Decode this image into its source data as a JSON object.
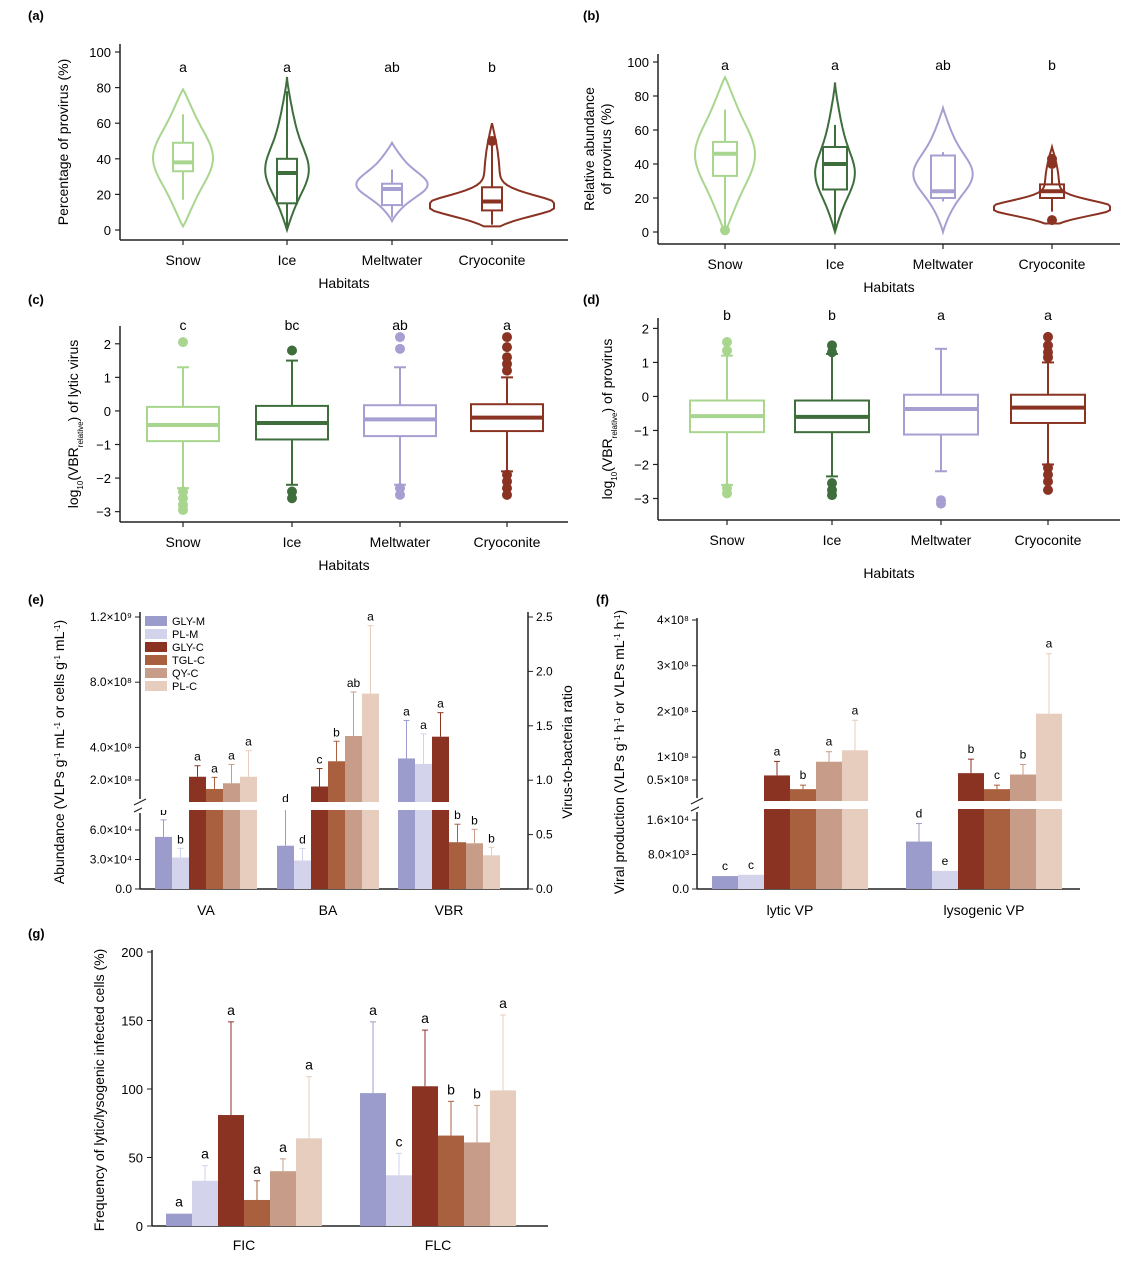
{
  "colors": {
    "Snow": "#a8d68f",
    "Ice": "#3d6e3b",
    "Meltwater": "#a59fd2",
    "Cryoconite": "#8b3323",
    "GLY-M": "#9c9ccc",
    "PL-M": "#d3d3ec",
    "GLY-C": "#8b3323",
    "TGL-C": "#a9603e",
    "QY-C": "#c79c88",
    "PL-C": "#e7cdbd"
  },
  "chart_data": [
    {
      "panel": "(a)",
      "type": "violin",
      "xlabel": "Habitats",
      "ylabel": "Percentage of provirus (%)",
      "categories": [
        "Snow",
        "Ice",
        "Meltwater",
        "Cryoconite"
      ],
      "ylim": [
        0,
        100
      ],
      "yticks": [
        0,
        20,
        40,
        60,
        80,
        100
      ],
      "significance": [
        "a",
        "a",
        "ab",
        "b"
      ],
      "boxes": [
        {
          "min": 17,
          "q1": 33,
          "median": 38,
          "q3": 49,
          "max": 65,
          "vmin": 2,
          "vmax": 79
        },
        {
          "min": 0,
          "q1": 15,
          "median": 32,
          "q3": 40,
          "max": 78,
          "vmin": 0,
          "vmax": 86
        },
        {
          "min": 7,
          "q1": 14,
          "median": 23,
          "q3": 26,
          "max": 34,
          "vmin": 5,
          "vmax": 49
        },
        {
          "min": 3,
          "q1": 11,
          "median": 16,
          "q3": 24,
          "max": 50,
          "vmin": 2,
          "vmax": 60
        }
      ],
      "outliers": [
        [],
        [],
        [],
        [
          50
        ]
      ]
    },
    {
      "panel": "(b)",
      "type": "violin",
      "xlabel": "Habitats",
      "ylabel": "Relative abundance of provirus (%)",
      "ylabel_lines": [
        "Relative abundance",
        "of provirus (%)"
      ],
      "categories": [
        "Snow",
        "Ice",
        "Meltwater",
        "Cryoconite"
      ],
      "ylim": [
        0,
        100
      ],
      "yticks": [
        0,
        20,
        40,
        60,
        80,
        100
      ],
      "significance": [
        "a",
        "a",
        "ab",
        "b"
      ],
      "boxes": [
        {
          "min": 3,
          "q1": 33,
          "median": 46,
          "q3": 53,
          "max": 72,
          "vmin": 0,
          "vmax": 91
        },
        {
          "min": 1,
          "q1": 25,
          "median": 40,
          "q3": 50,
          "max": 63,
          "vmin": 0,
          "vmax": 88
        },
        {
          "min": 18,
          "q1": 20,
          "median": 24,
          "q3": 45,
          "max": 47,
          "vmin": 0,
          "vmax": 73
        },
        {
          "min": 12,
          "q1": 20,
          "median": 24,
          "q3": 28,
          "max": 37,
          "vmin": 5,
          "vmax": 50
        }
      ],
      "outliers": [
        [
          1
        ],
        [],
        [],
        [
          7,
          40,
          43
        ]
      ]
    },
    {
      "panel": "(c)",
      "type": "box",
      "xlabel": "Habitats",
      "ylabel": "log10(VBRrelative) of lytic virus",
      "categories": [
        "Snow",
        "Ice",
        "Meltwater",
        "Cryoconite"
      ],
      "ylim": [
        -3.1,
        2.5
      ],
      "yticks": [
        -3,
        -2,
        -1,
        0,
        1,
        2
      ],
      "significance": [
        "c",
        "bc",
        "ab",
        "a"
      ],
      "boxes": [
        {
          "min": -2.3,
          "q1": -0.9,
          "median": -0.42,
          "q3": 0.12,
          "max": 1.3
        },
        {
          "min": -2.2,
          "q1": -0.85,
          "median": -0.36,
          "q3": 0.15,
          "max": 1.5
        },
        {
          "min": -2.2,
          "q1": -0.75,
          "median": -0.25,
          "q3": 0.17,
          "max": 1.3
        },
        {
          "min": -1.8,
          "q1": -0.6,
          "median": -0.2,
          "q3": 0.2,
          "max": 1.0
        }
      ],
      "outliers": [
        [
          2.05,
          -2.4,
          -2.6,
          -2.8,
          -2.95
        ],
        [
          1.8,
          -2.4,
          -2.6
        ],
        [
          2.2,
          1.85,
          -2.3,
          -2.5
        ],
        [
          2.2,
          1.9,
          1.6,
          1.4,
          1.2,
          -1.9,
          -2.1,
          -2.3,
          -2.5
        ]
      ]
    },
    {
      "panel": "(d)",
      "type": "box",
      "xlabel": "Habitats",
      "ylabel": "log10(VBRrelative) of provirus",
      "categories": [
        "Snow",
        "Ice",
        "Meltwater",
        "Cryoconite"
      ],
      "ylim": [
        -3.25,
        2.1
      ],
      "yticks": [
        -3,
        -2,
        -1,
        0,
        1,
        2
      ],
      "significance": [
        "b",
        "b",
        "a",
        "a"
      ],
      "boxes": [
        {
          "min": -2.6,
          "q1": -1.05,
          "median": -0.58,
          "q3": -0.12,
          "max": 1.2
        },
        {
          "min": -2.35,
          "q1": -1.05,
          "median": -0.6,
          "q3": -0.12,
          "max": 1.25
        },
        {
          "min": -2.2,
          "q1": -1.12,
          "median": -0.37,
          "q3": 0.05,
          "max": 1.4
        },
        {
          "min": -2.0,
          "q1": -0.78,
          "median": -0.33,
          "q3": 0.05,
          "max": 1.0
        }
      ],
      "outliers": [
        [
          1.6,
          1.35,
          -2.7,
          -2.85
        ],
        [
          1.5,
          1.3,
          -2.55,
          -2.75,
          -2.9
        ],
        [
          -3.05,
          -3.15
        ],
        [
          1.75,
          1.5,
          1.3,
          1.15,
          -2.1,
          -2.3,
          -2.5,
          -2.75
        ]
      ]
    },
    {
      "panel": "(e)",
      "type": "bar",
      "xlabel": "",
      "ylabel": "Abundance (VLPs g-1 mL-1 or cells g-1 mL-1)",
      "ylabel_right": "Virus-to-bacteria ratio",
      "categories": [
        "VA",
        "BA",
        "VBR"
      ],
      "series_names": [
        "GLY-M",
        "PL-M",
        "GLY-C",
        "TGL-C",
        "QY-C",
        "PL-C"
      ],
      "yticks_left_lower": [
        "0.0",
        "3.0×10⁴",
        "6.0×10⁴"
      ],
      "yticks_left_upper": [
        "2.0×10⁸",
        "4.0×10⁸",
        "8.0×10⁸",
        "1.2×10⁹"
      ],
      "yticks_right": [
        "0.0",
        "0.5",
        "1.0",
        "1.5",
        "2.0",
        "2.5"
      ],
      "VA": {
        "values": [
          53000,
          32000,
          220000000.0,
          145000000.0,
          180000000.0,
          220000000.0
        ],
        "letters": [
          "b",
          "b",
          "a",
          "a",
          "a",
          "a"
        ]
      },
      "BA": {
        "values": [
          44000,
          29000,
          160000000.0,
          315000000.0,
          470000000.0,
          730000000.0
        ],
        "letters": [
          "d",
          "d",
          "c",
          "b",
          "ab",
          "a"
        ]
      },
      "VBR": {
        "values": [
          1.2,
          1.15,
          1.4,
          0.43,
          0.42,
          0.31
        ],
        "letters": [
          "a",
          "a",
          "a",
          "b",
          "b",
          "b"
        ]
      }
    },
    {
      "panel": "(f)",
      "type": "bar",
      "xlabel": "",
      "ylabel": "Viral production (VLPs g-1 h-1 or VLPs mL-1 h-1)",
      "categories": [
        "lytic VP",
        "lysogenic VP"
      ],
      "series_names": [
        "GLY-M",
        "PL-M",
        "GLY-C",
        "TGL-C",
        "QY-C",
        "PL-C"
      ],
      "yticks_lower": [
        "0.0",
        "8.0×10³",
        "1.6×10⁴"
      ],
      "yticks_upper": [
        "0.5×10⁸",
        "1×10⁸",
        "2×10⁸",
        "3×10⁸",
        "4×10⁸"
      ],
      "lytic VP": {
        "values": [
          3000,
          3300,
          60000000.0,
          2000000.0,
          90000000.0,
          115000000.0
        ],
        "letters": [
          "c",
          "c",
          "a",
          "b",
          "a",
          "a"
        ]
      },
      "lysogenic VP": {
        "values": [
          11000,
          4200,
          65000000.0,
          13000000.0,
          62000000.0,
          195000000.0
        ],
        "letters": [
          "d",
          "e",
          "b",
          "c",
          "b",
          "a"
        ]
      }
    },
    {
      "panel": "(g)",
      "type": "bar",
      "xlabel": "",
      "ylabel": "Frequency of lytic/lysogenic infected cells (%)",
      "categories": [
        "FIC",
        "FLC"
      ],
      "ylim": [
        0,
        200
      ],
      "yticks": [
        0,
        50,
        100,
        150,
        200
      ],
      "series_names": [
        "GLY-M",
        "PL-M",
        "GLY-C",
        "TGL-C",
        "QY-C",
        "PL-C"
      ],
      "FIC": {
        "values": [
          9,
          33,
          81,
          19,
          40,
          64
        ],
        "letters": [
          "a",
          "a",
          "a",
          "a",
          "a",
          "a"
        ]
      },
      "FLC": {
        "values": [
          97,
          37,
          102,
          66,
          61,
          99
        ],
        "letters": [
          "a",
          "c",
          "a",
          "b",
          "b",
          "a"
        ]
      }
    }
  ]
}
